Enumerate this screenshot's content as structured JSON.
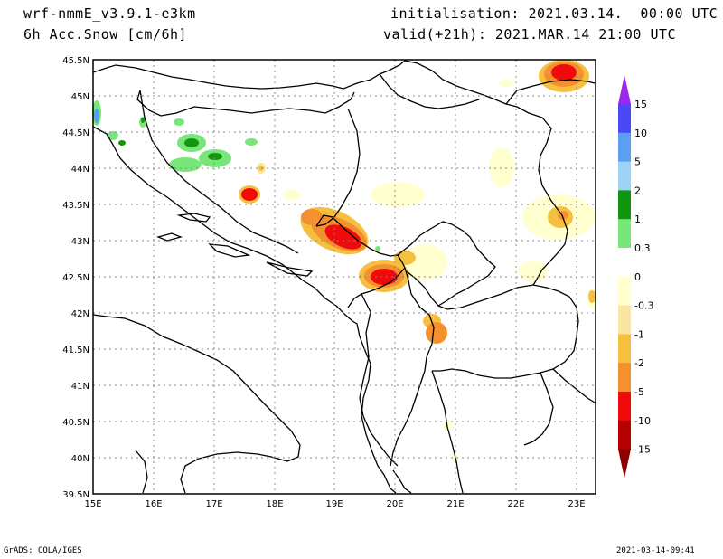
{
  "header": {
    "model": "wrf-nmmE_v3.9.1-e3km",
    "field": "6h Acc.Snow [cm/6h]",
    "init": "initialisation: 2021.03.14.  00:00 UTC",
    "valid": "valid(+21h): 2021.MAR.14 21:00 UTC"
  },
  "footer": {
    "credit": "GrADS: COLA/IGES",
    "timestamp": "2021-03-14-09:41"
  },
  "axes": {
    "lon_labels": [
      "15E",
      "16E",
      "17E",
      "18E",
      "19E",
      "20E",
      "21E",
      "22E",
      "23E"
    ],
    "lat_labels": [
      "39.5N",
      "40N",
      "40.5N",
      "41N",
      "41.5N",
      "42N",
      "42.5N",
      "43N",
      "43.5N",
      "44N",
      "44.5N",
      "45N",
      "45.5N"
    ],
    "lon_range": [
      15,
      23.3
    ],
    "lat_range": [
      39.5,
      45.5
    ]
  },
  "colorbar": {
    "labels": [
      "15",
      "10",
      "5",
      "2",
      "1",
      "0.3",
      "0",
      "-0.3",
      "-1",
      "-2",
      "-5",
      "-10",
      "-15"
    ],
    "colors": [
      "#9c28f0",
      "#4a4af5",
      "#5aa0f0",
      "#a0d2f8",
      "#12960f",
      "#78e678",
      "#ffffff",
      "#ffffd0",
      "#fae6a0",
      "#f5c040",
      "#f59030",
      "#f00a0a",
      "#b40000",
      "#8c0000"
    ]
  },
  "map": {
    "land_color": "#ffffff",
    "border_color": "#000000",
    "grid": "dotted"
  }
}
